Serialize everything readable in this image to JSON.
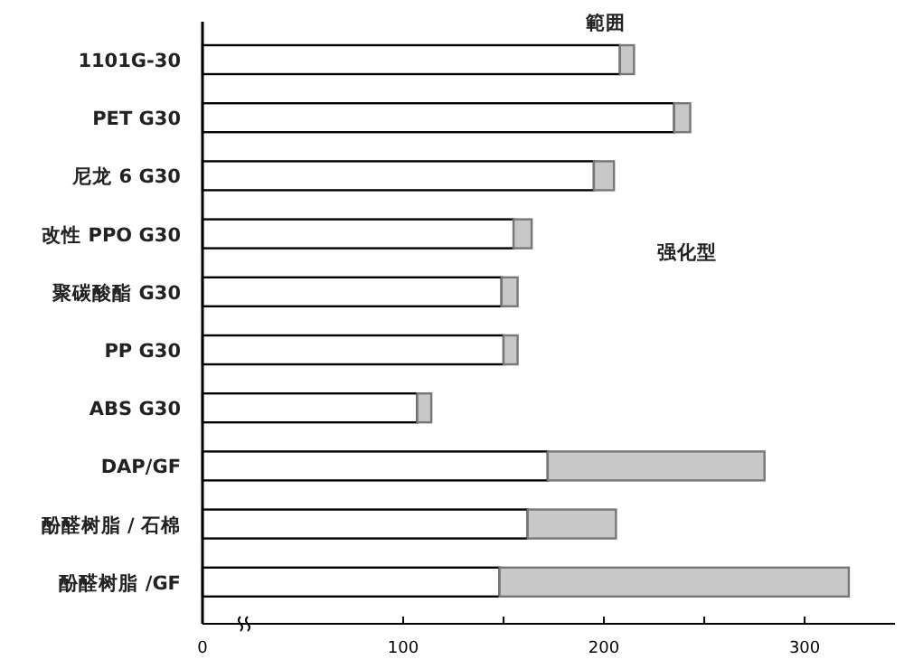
{
  "chart_data": {
    "type": "bar",
    "orientation": "horizontal",
    "stacked": true,
    "categories": [
      "1101G-30",
      "PET G30",
      "尼龙 6 G30",
      "改性 PPO G30",
      "聚碳酸酯 G30",
      "PP G30",
      "ABS G30",
      "DAP/GF",
      "酚醛树脂 / 石棉",
      "酚醛树脂 /GF"
    ],
    "series": [
      {
        "color": "#ffffff",
        "values": [
          208,
          235,
          195,
          155,
          149,
          150,
          107,
          172,
          162,
          148
        ]
      },
      {
        "color": "#c8c8c8",
        "values": [
          7,
          8,
          10,
          9,
          8,
          7,
          7,
          108,
          44,
          174
        ]
      }
    ],
    "xlim": [
      0,
      345
    ],
    "xticks": [
      0,
      100,
      {
        "value": 150,
        "label": null
      },
      200,
      {
        "value": 250,
        "label": null
      },
      300
    ],
    "annotations": [
      "範囲",
      "强化型"
    ]
  }
}
